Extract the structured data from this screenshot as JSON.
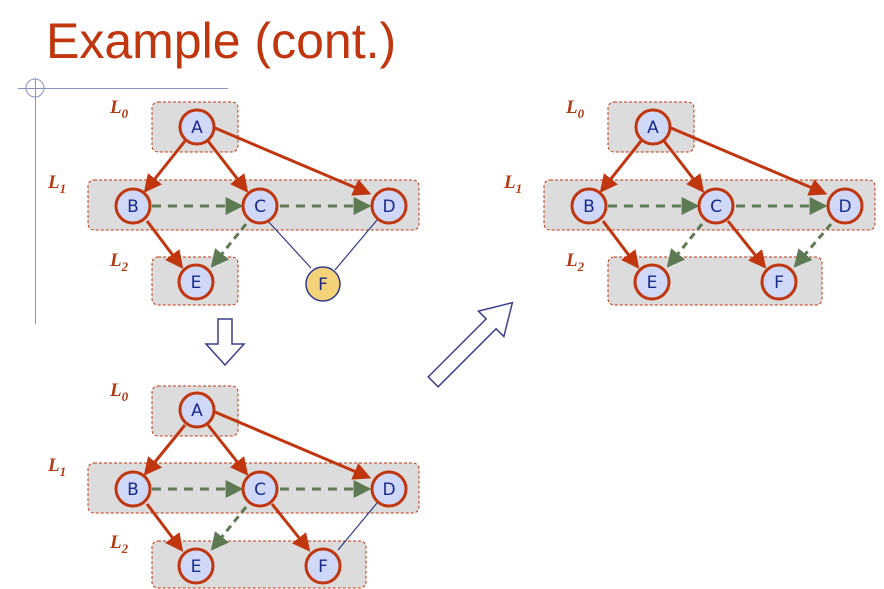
{
  "slide": {
    "title": "Example (cont.)"
  },
  "colors": {
    "title": "#c0360f",
    "tree_edge": "#c0360f",
    "cross_edge": "#5e7a55",
    "plain_edge": "#2e3a8a",
    "node_fill": "#cfd8f7",
    "node_stroke": "#c0360f",
    "highlight_node_fill": "#f4d27a",
    "level_box_fill": "#dcdcdc",
    "level_box_stroke": "#c0360f",
    "transition_arrow": "#3a3f8a"
  },
  "level_labels": {
    "l0": {
      "main": "L",
      "sub": "0"
    },
    "l1": {
      "main": "L",
      "sub": "1"
    },
    "l2": {
      "main": "L",
      "sub": "2"
    }
  },
  "diagrams": [
    {
      "id": "top-left",
      "nodes": {
        "A": "A",
        "B": "B",
        "C": "C",
        "D": "D",
        "E": "E",
        "F": "F"
      },
      "levels": [
        [
          "A"
        ],
        [
          "B",
          "C",
          "D"
        ],
        [
          "E"
        ]
      ],
      "discovery_edges": [
        [
          "A",
          "B"
        ],
        [
          "A",
          "C"
        ],
        [
          "A",
          "D"
        ],
        [
          "B",
          "E"
        ]
      ],
      "cross_edges": [
        [
          "B",
          "C"
        ],
        [
          "C",
          "D"
        ],
        [
          "C",
          "E"
        ]
      ],
      "unexplored_edges": [
        [
          "C",
          "F"
        ],
        [
          "D",
          "F"
        ]
      ],
      "current_node": "F"
    },
    {
      "id": "bottom-left",
      "nodes": {
        "A": "A",
        "B": "B",
        "C": "C",
        "D": "D",
        "E": "E",
        "F": "F"
      },
      "levels": [
        [
          "A"
        ],
        [
          "B",
          "C",
          "D"
        ],
        [
          "E",
          "F"
        ]
      ],
      "discovery_edges": [
        [
          "A",
          "B"
        ],
        [
          "A",
          "C"
        ],
        [
          "A",
          "D"
        ],
        [
          "B",
          "E"
        ],
        [
          "C",
          "F"
        ]
      ],
      "cross_edges": [
        [
          "B",
          "C"
        ],
        [
          "C",
          "D"
        ],
        [
          "C",
          "E"
        ]
      ],
      "unexplored_edges": [
        [
          "D",
          "F"
        ]
      ]
    },
    {
      "id": "right",
      "nodes": {
        "A": "A",
        "B": "B",
        "C": "C",
        "D": "D",
        "E": "E",
        "F": "F"
      },
      "levels": [
        [
          "A"
        ],
        [
          "B",
          "C",
          "D"
        ],
        [
          "E",
          "F"
        ]
      ],
      "discovery_edges": [
        [
          "A",
          "B"
        ],
        [
          "A",
          "C"
        ],
        [
          "A",
          "D"
        ],
        [
          "B",
          "E"
        ],
        [
          "C",
          "F"
        ]
      ],
      "cross_edges": [
        [
          "B",
          "C"
        ],
        [
          "C",
          "D"
        ],
        [
          "C",
          "E"
        ],
        [
          "D",
          "F"
        ]
      ],
      "unexplored_edges": []
    }
  ]
}
